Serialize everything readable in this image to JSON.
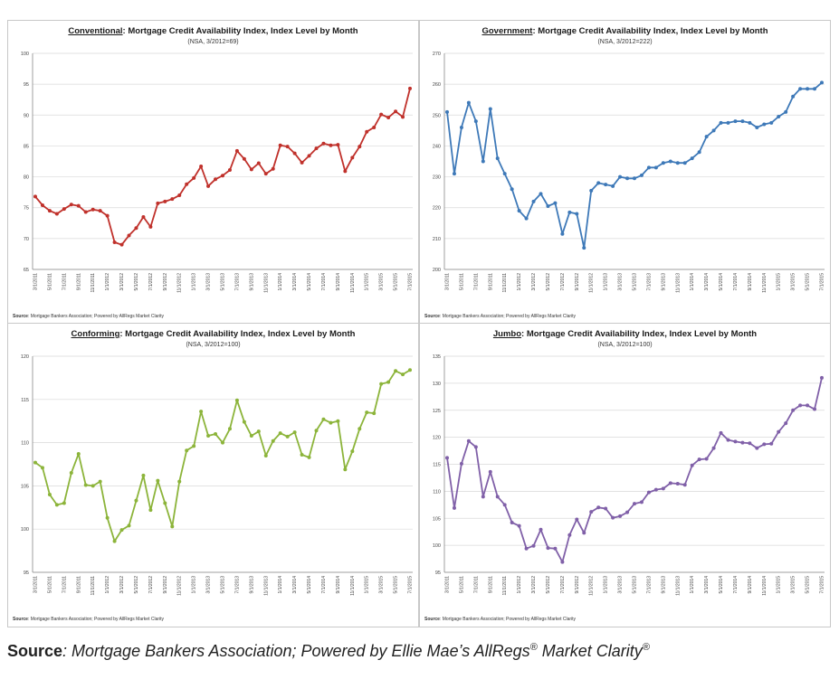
{
  "chart_data": [
    {
      "type": "line",
      "title_keyword": "Conventional",
      "title_rest": ": Mortgage Credit Availability Index, Index Level by Month",
      "subtitle": "(NSA, 3/2012=69)",
      "source_label": "Source",
      "source_text": ": Mortgage Bankers Association; Powered by AllRegs Market Clarity",
      "color": "#c0312b",
      "ylim": [
        65,
        100
      ],
      "yticks": [
        65,
        70,
        75,
        80,
        85,
        90,
        95,
        100
      ],
      "x_tick_labels": [
        "3/1/2011",
        "5/1/2011",
        "7/1/2011",
        "9/1/2011",
        "11/1/2011",
        "1/1/2012",
        "3/1/2012",
        "5/1/2012",
        "7/1/2012",
        "9/1/2012",
        "11/1/2012",
        "1/1/2013",
        "3/1/2013",
        "5/1/2013",
        "7/1/2013",
        "9/1/2013",
        "11/1/2013",
        "1/1/2014",
        "3/1/2014",
        "5/1/2014",
        "7/1/2014",
        "9/1/2014",
        "11/1/2014",
        "1/1/2015",
        "3/1/2015",
        "5/1/2015",
        "7/1/2015"
      ],
      "values": [
        76.8,
        75.4,
        74.5,
        74.0,
        74.8,
        75.5,
        75.3,
        74.3,
        74.7,
        74.5,
        73.7,
        69.4,
        69.0,
        70.5,
        71.7,
        73.5,
        71.9,
        75.7,
        76.0,
        76.4,
        77.0,
        78.8,
        79.8,
        81.7,
        78.5,
        79.6,
        80.2,
        81.1,
        84.2,
        82.9,
        81.2,
        82.2,
        80.5,
        81.3,
        85.1,
        84.9,
        83.8,
        82.3,
        83.4,
        84.6,
        85.4,
        85.1,
        85.2,
        80.9,
        83.1,
        84.9,
        87.3,
        88.0,
        90.1,
        89.6,
        90.6,
        89.7,
        94.3
      ]
    },
    {
      "type": "line",
      "title_keyword": "Government",
      "title_rest": ": Mortgage Credit Availability Index, Index Level by Month",
      "subtitle": "(NSA, 3/2012=222)",
      "source_label": "Source",
      "source_text": ": Mortgage Bankers Association; Powered by AllRegs Market Clarity",
      "color": "#3e79b8",
      "ylim": [
        200,
        270
      ],
      "yticks": [
        200,
        210,
        220,
        230,
        240,
        250,
        260,
        270
      ],
      "x_tick_labels": [
        "3/1/2011",
        "5/1/2011",
        "7/1/2011",
        "9/1/2011",
        "11/1/2011",
        "1/1/2012",
        "3/1/2012",
        "5/1/2012",
        "7/1/2012",
        "9/1/2012",
        "11/1/2012",
        "1/1/2013",
        "3/1/2013",
        "5/1/2013",
        "7/1/2013",
        "9/1/2013",
        "11/1/2013",
        "1/1/2014",
        "3/1/2014",
        "5/1/2014",
        "7/1/2014",
        "9/1/2014",
        "11/1/2014",
        "1/1/2015",
        "3/1/2015",
        "5/1/2015",
        "7/1/2015"
      ],
      "values": [
        251,
        231,
        246,
        254,
        248,
        235,
        252,
        236,
        231,
        226,
        219,
        216.5,
        222,
        224.5,
        220.5,
        221.5,
        211.5,
        218.5,
        218,
        207,
        225.5,
        228,
        227.5,
        227,
        230,
        229.5,
        229.5,
        230.5,
        233,
        233,
        234.5,
        235,
        234.5,
        234.5,
        236,
        238,
        243,
        245,
        247.5,
        247.5,
        248,
        248,
        247.5,
        246,
        247,
        247.5,
        249.5,
        251,
        256,
        258.5,
        258.5,
        258.5,
        260.5
      ]
    },
    {
      "type": "line",
      "title_keyword": "Conforming",
      "title_rest": ": Mortgage Credit Availability Index, Index Level by Month",
      "subtitle": "(NSA, 3/2012=100)",
      "source_label": "Source",
      "source_text": ": Mortgage Bankers Association; Powered by AllRegs Market Clarity",
      "color": "#8cb43a",
      "ylim": [
        95,
        120
      ],
      "yticks": [
        95,
        100,
        105,
        110,
        115,
        120
      ],
      "x_tick_labels": [
        "3/1/2011",
        "5/1/2011",
        "7/1/2011",
        "9/1/2011",
        "11/1/2011",
        "1/1/2012",
        "3/1/2012",
        "5/1/2012",
        "7/1/2012",
        "9/1/2012",
        "11/1/2012",
        "1/1/2013",
        "3/1/2013",
        "5/1/2013",
        "7/1/2013",
        "9/1/2013",
        "11/1/2013",
        "1/1/2014",
        "3/1/2014",
        "5/1/2014",
        "7/1/2014",
        "9/1/2014",
        "11/1/2014",
        "1/1/2015",
        "3/1/2015",
        "5/1/2015",
        "7/1/2015"
      ],
      "values": [
        107.7,
        107.1,
        104.0,
        102.8,
        103.0,
        106.5,
        108.7,
        105.1,
        105.0,
        105.5,
        101.3,
        98.6,
        99.9,
        100.4,
        103.3,
        106.2,
        102.2,
        105.6,
        103.0,
        100.3,
        105.5,
        109.1,
        109.6,
        113.6,
        110.8,
        111.0,
        110.0,
        111.6,
        114.9,
        112.4,
        110.8,
        111.3,
        108.5,
        110.2,
        111.1,
        110.7,
        111.2,
        108.6,
        108.3,
        111.4,
        112.7,
        112.3,
        112.5,
        106.9,
        109.0,
        111.6,
        113.5,
        113.4,
        116.8,
        117.0,
        118.3,
        117.9,
        118.4
      ]
    },
    {
      "type": "line",
      "title_keyword": "Jumbo",
      "title_rest": ": Mortgage Credit Availability Index, Index Level by Month",
      "subtitle": "(NSA, 3/2012=100)",
      "source_label": "Source",
      "source_text": ": Mortgage Bankers Association; Powered by AllRegs Market Clarity",
      "color": "#8060a8",
      "ylim": [
        95,
        135
      ],
      "yticks": [
        95,
        100,
        105,
        110,
        115,
        120,
        125,
        130,
        135
      ],
      "x_tick_labels": [
        "3/1/2011",
        "5/1/2011",
        "7/1/2011",
        "9/1/2011",
        "11/1/2011",
        "1/1/2012",
        "3/1/2012",
        "5/1/2012",
        "7/1/2012",
        "9/1/2012",
        "11/1/2012",
        "1/1/2013",
        "3/1/2013",
        "5/1/2013",
        "7/1/2013",
        "9/1/2013",
        "11/1/2013",
        "1/1/2014",
        "3/1/2014",
        "5/1/2014",
        "7/1/2014",
        "9/1/2014",
        "11/1/2014",
        "1/1/2015",
        "3/1/2015",
        "5/1/2015",
        "7/1/2015"
      ],
      "values": [
        116.2,
        106.9,
        115.1,
        119.3,
        118.2,
        109.0,
        113.6,
        109.0,
        107.5,
        104.2,
        103.6,
        99.4,
        99.9,
        102.9,
        99.5,
        99.4,
        96.9,
        101.9,
        104.8,
        102.3,
        106.2,
        107.0,
        106.8,
        105.1,
        105.4,
        106.1,
        107.7,
        108.0,
        109.8,
        110.3,
        110.5,
        111.5,
        111.4,
        111.2,
        114.8,
        115.9,
        116.0,
        118.0,
        120.8,
        119.5,
        119.2,
        119.0,
        118.9,
        118.0,
        118.7,
        118.8,
        121.0,
        122.6,
        125.0,
        125.9,
        125.9,
        125.2,
        131.0
      ]
    }
  ],
  "footer": {
    "label": "Source",
    "text": ": Mortgage Bankers Association; Powered by Ellie Mae’s AllRegs",
    "reg1": "®",
    "text2": " Market Clarity",
    "reg2": "®"
  }
}
